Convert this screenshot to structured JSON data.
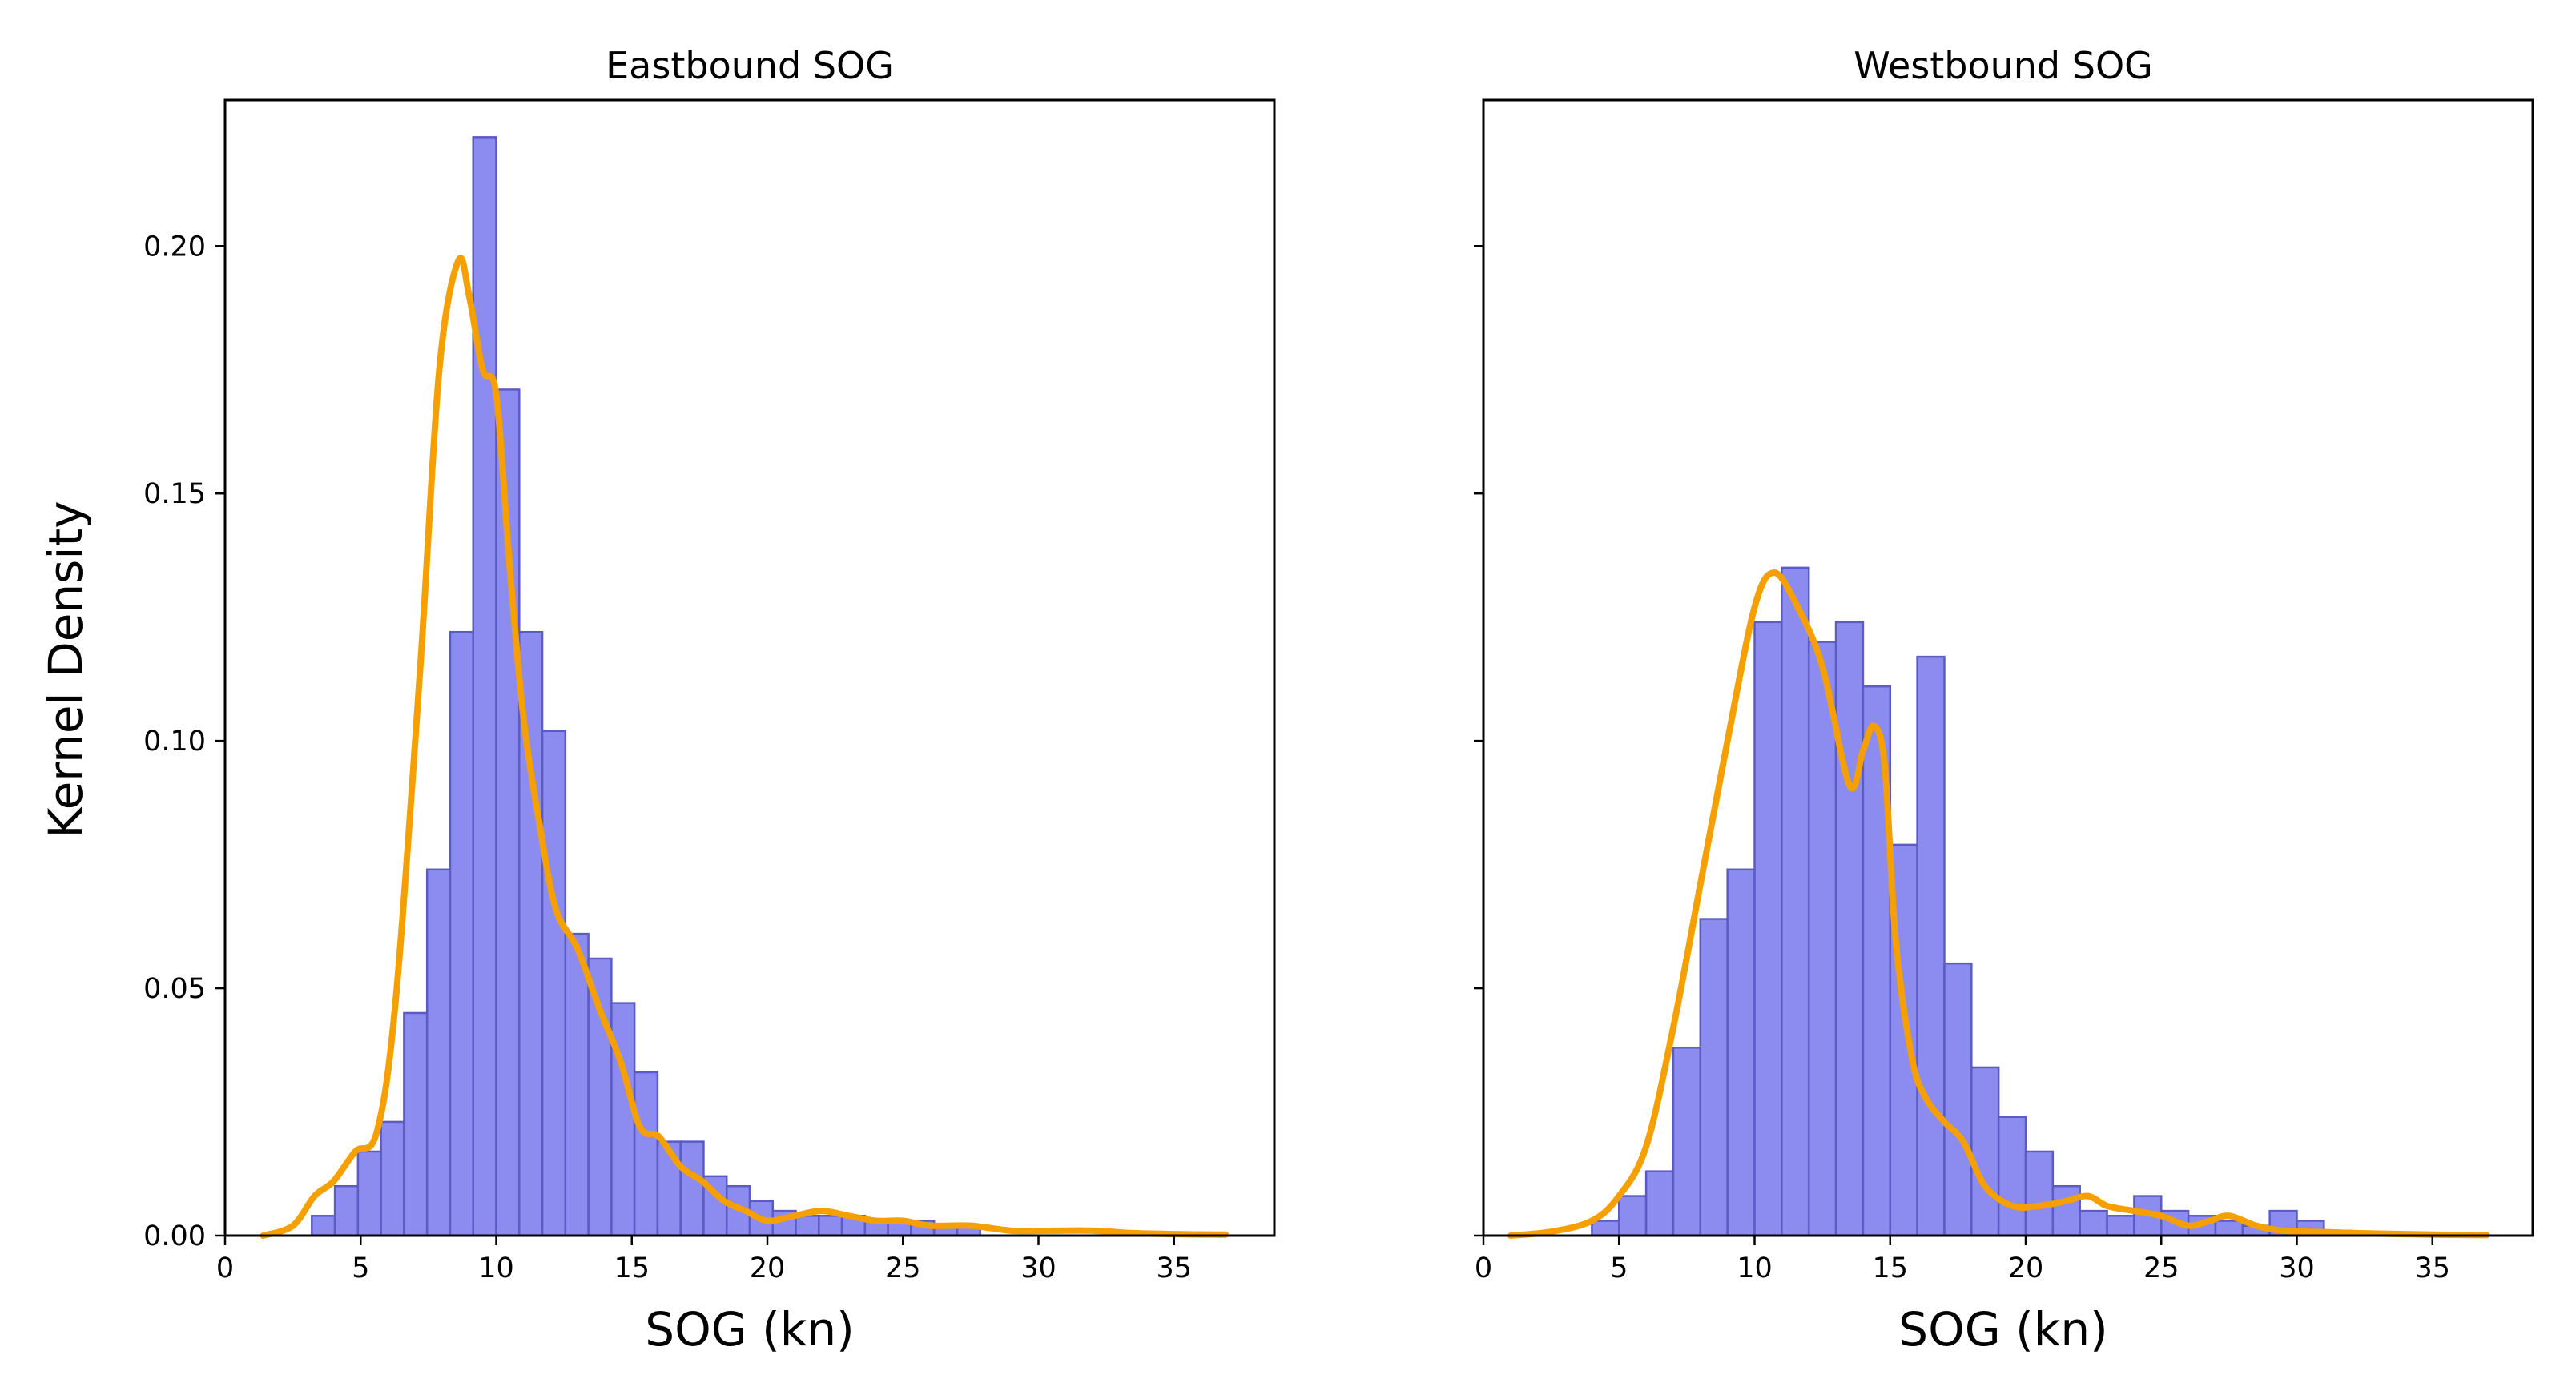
{
  "figure": {
    "ylabel": "Kernel Density"
  },
  "chart_data": [
    {
      "type": "bar",
      "title": "Eastbound SOG",
      "xlabel": "SOG (kn)",
      "ylabel": "Kernel Density",
      "xlim": [
        0,
        38.7
      ],
      "ylim": [
        0,
        0.2295
      ],
      "xticks": [
        0,
        5,
        10,
        15,
        20,
        25,
        30,
        35
      ],
      "yticks": [
        0.0,
        0.05,
        0.1,
        0.15,
        0.2
      ],
      "ytick_labels": [
        "0.00",
        "0.05",
        "0.10",
        "0.15",
        "0.20"
      ],
      "show_ytick_labels": true,
      "bar_color": "#8b8bf0",
      "kde_color": "#f5a000",
      "bin_start": 1.5,
      "bin_width": 0.85,
      "values": [
        0.0,
        0.0,
        0.004,
        0.01,
        0.017,
        0.023,
        0.045,
        0.074,
        0.122,
        0.222,
        0.171,
        0.122,
        0.102,
        0.061,
        0.056,
        0.047,
        0.033,
        0.019,
        0.019,
        0.012,
        0.01,
        0.007,
        0.005,
        0.004,
        0.004,
        0.004,
        0.003,
        0.003,
        0.003,
        0.002,
        0.002
      ],
      "kde": {
        "x": [
          1.4,
          2.5,
          3.3,
          4.0,
          4.8,
          5.6,
          6.3,
          7.2,
          7.9,
          8.6,
          9.0,
          9.5,
          10.0,
          10.5,
          11.0,
          11.6,
          12.2,
          13.0,
          13.8,
          14.6,
          15.3,
          16.0,
          16.8,
          17.6,
          18.4,
          19.2,
          20.0,
          21.0,
          22.0,
          23.0,
          24.0,
          25.0,
          26.0,
          27.5,
          29.0,
          30.5,
          32.0,
          33.5,
          35.0,
          36.9
        ],
        "y": [
          0.0,
          0.002,
          0.008,
          0.011,
          0.017,
          0.021,
          0.048,
          0.115,
          0.175,
          0.197,
          0.19,
          0.175,
          0.17,
          0.135,
          0.105,
          0.083,
          0.066,
          0.058,
          0.046,
          0.035,
          0.022,
          0.02,
          0.014,
          0.011,
          0.007,
          0.005,
          0.003,
          0.004,
          0.005,
          0.004,
          0.003,
          0.003,
          0.002,
          0.002,
          0.001,
          0.001,
          0.001,
          0.0005,
          0.0003,
          0.0002
        ]
      }
    },
    {
      "type": "bar",
      "title": "Westbound SOG",
      "xlabel": "SOG (kn)",
      "ylabel": "",
      "xlim": [
        0,
        38.7
      ],
      "ylim": [
        0,
        0.2295
      ],
      "xticks": [
        0,
        5,
        10,
        15,
        20,
        25,
        30,
        35
      ],
      "yticks": [
        0.0,
        0.05,
        0.1,
        0.15,
        0.2
      ],
      "ytick_labels": [
        "0.00",
        "0.05",
        "0.10",
        "0.15",
        "0.20"
      ],
      "show_ytick_labels": false,
      "bar_color": "#8b8bf0",
      "kde_color": "#f5a000",
      "bin_start": 1.0,
      "bin_width": 1.0,
      "values": [
        0.0,
        0.0,
        0.0,
        0.003,
        0.008,
        0.013,
        0.038,
        0.064,
        0.074,
        0.124,
        0.135,
        0.12,
        0.124,
        0.111,
        0.079,
        0.117,
        0.055,
        0.034,
        0.024,
        0.017,
        0.01,
        0.005,
        0.004,
        0.008,
        0.005,
        0.004,
        0.003,
        0.002,
        0.005,
        0.003,
        0.001
      ],
      "kde": {
        "x": [
          1.0,
          2.5,
          4.0,
          5.0,
          6.0,
          7.0,
          8.0,
          9.0,
          10.0,
          10.7,
          11.5,
          12.5,
          13.5,
          14.0,
          14.4,
          14.8,
          15.2,
          15.8,
          16.3,
          17.0,
          17.7,
          18.5,
          19.5,
          20.5,
          21.5,
          22.3,
          23.0,
          24.0,
          25.0,
          26.0,
          26.8,
          27.5,
          28.5,
          29.5,
          31.0,
          33.0,
          35.0,
          37.0
        ],
        "y": [
          0.0,
          0.0008,
          0.003,
          0.008,
          0.018,
          0.042,
          0.071,
          0.1,
          0.127,
          0.134,
          0.128,
          0.115,
          0.091,
          0.098,
          0.103,
          0.095,
          0.06,
          0.036,
          0.028,
          0.023,
          0.019,
          0.01,
          0.006,
          0.006,
          0.007,
          0.008,
          0.006,
          0.005,
          0.004,
          0.002,
          0.003,
          0.004,
          0.002,
          0.001,
          0.0007,
          0.0004,
          0.0002,
          0.0001
        ]
      }
    }
  ]
}
